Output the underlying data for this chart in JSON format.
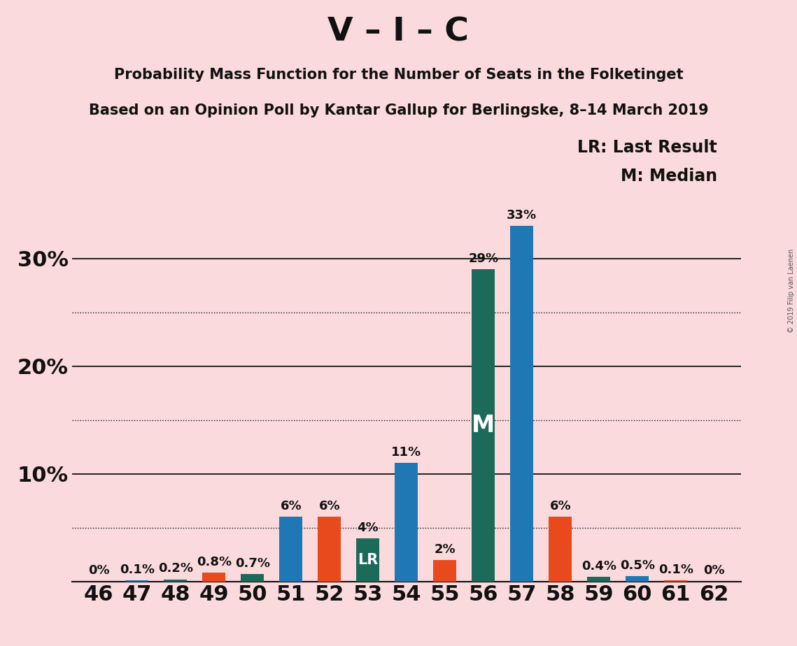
{
  "title": "V – I – C",
  "subtitle1": "Probability Mass Function for the Number of Seats in the Folketinget",
  "subtitle2": "Based on an Opinion Poll by Kantar Gallup for Berlingske, 8–14 March 2019",
  "copyright": "© 2019 Filip van Laenen",
  "legend_lr": "LR: Last Result",
  "legend_m": "M: Median",
  "background_color": "#FADADD",
  "seats": [
    46,
    47,
    48,
    49,
    50,
    51,
    52,
    53,
    54,
    55,
    56,
    57,
    58,
    59,
    60,
    61,
    62
  ],
  "bar_colors": [
    null,
    "#1F77B4",
    "#1C6B5A",
    "#E8491D",
    "#1C6B5A",
    "#1F77B4",
    "#E8491D",
    "#1C6B5A",
    "#1F77B4",
    "#E8491D",
    "#1C6B5A",
    "#1F77B4",
    "#E8491D",
    "#1C6B5A",
    "#1F77B4",
    "#E8491D",
    null
  ],
  "bar_values": [
    0,
    0.1,
    0.2,
    0.8,
    0.7,
    6.0,
    6.0,
    4.0,
    11.0,
    2.0,
    29.0,
    33.0,
    6.0,
    0.4,
    0.5,
    0.1,
    0
  ],
  "bar_labels": [
    "0%",
    "0.1%",
    "0.2%",
    "0.8%",
    "0.7%",
    "6%",
    "6%",
    "4%",
    "11%",
    "2%",
    "29%",
    "33%",
    "6%",
    "0.4%",
    "0.5%",
    "0.1%",
    "0%"
  ],
  "ylim": [
    0,
    36
  ],
  "solid_yticks": [
    10,
    20,
    30
  ],
  "dotted_yticks": [
    5,
    15,
    25
  ],
  "lr_seat": 53,
  "median_seat": 56,
  "median_label": "M",
  "lr_label": "LR",
  "title_fontsize": 34,
  "subtitle_fontsize": 15,
  "bar_label_fontsize": 13,
  "tick_fontsize": 22,
  "legend_fontsize": 17,
  "note_fontsize": 7
}
